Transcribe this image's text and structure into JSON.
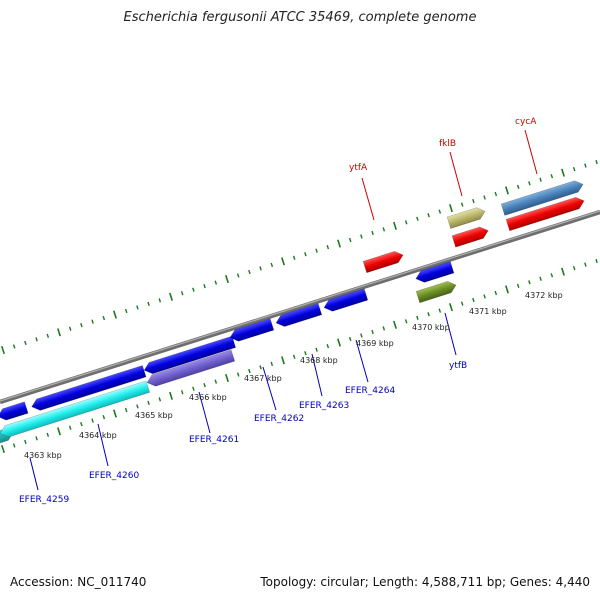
{
  "title": "Escherichia fergusonii ATCC 35469, complete genome",
  "footer": {
    "accession": "Accession: NC_011740",
    "summary": "Topology: circular; Length: 4,588,711 bp; Genes: 4,440"
  },
  "colors": {
    "forward_gene": "#ee0000",
    "reverse_gene": "#0000dd",
    "tick": "#1a7a1a",
    "backbone": "#888888"
  },
  "kbp_labels": [
    "4363 kbp",
    "4364 kbp",
    "4365 kbp",
    "4366 kbp",
    "4367 kbp",
    "4368 kbp",
    "4369 kbp",
    "4370 kbp",
    "4371 kbp",
    "4372 kbp"
  ],
  "gene_labels": {
    "reverse": [
      "EFER_4259",
      "EFER_4260",
      "EFER_4261",
      "EFER_4262",
      "EFER_4263",
      "EFER_4264",
      "ytfB"
    ],
    "forward": [
      "ytfA",
      "fklB",
      "cycA"
    ]
  }
}
